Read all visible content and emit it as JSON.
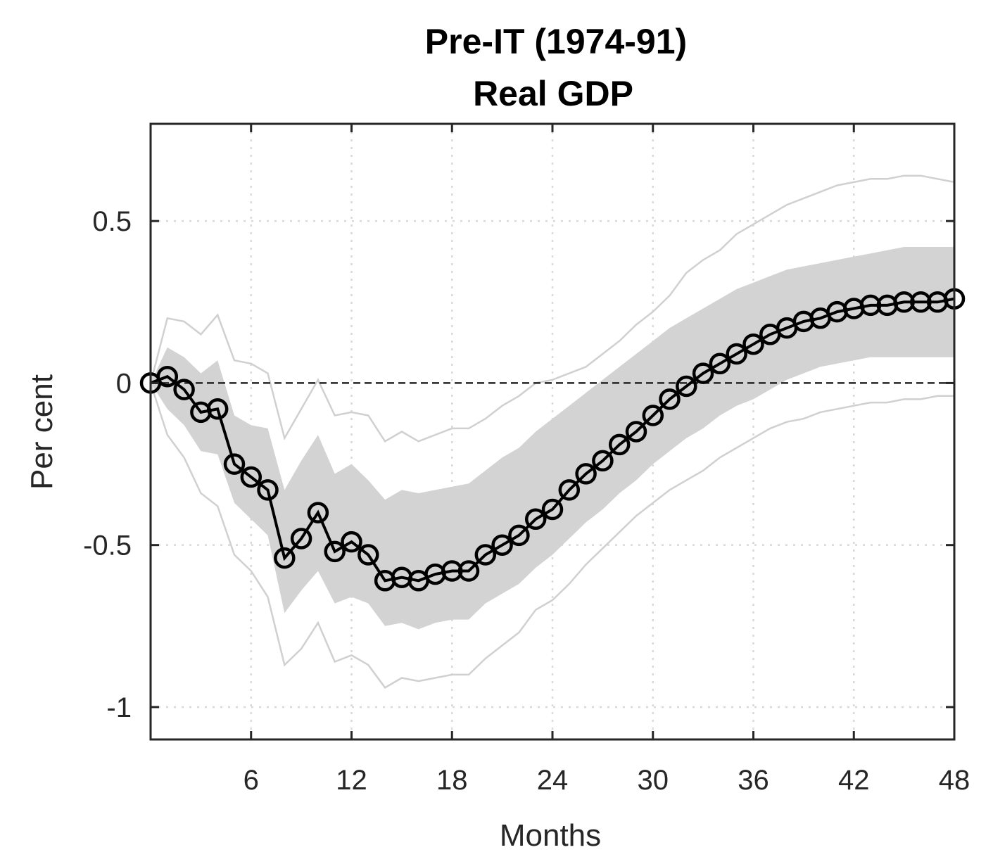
{
  "chart_data": {
    "type": "line",
    "title": "Pre-IT (1974-91)",
    "subtitle": "Real GDP",
    "xlabel": "Months",
    "ylabel": "Per cent",
    "xlim": [
      0,
      48
    ],
    "ylim": [
      -1.1,
      0.8
    ],
    "x_ticks": [
      6,
      12,
      18,
      24,
      30,
      36,
      42,
      48
    ],
    "x_tick_labels": [
      "6",
      "12",
      "18",
      "24",
      "30",
      "36",
      "42",
      "48"
    ],
    "y_ticks": [
      -1,
      -0.5,
      0,
      0.5
    ],
    "y_tick_labels": [
      "-1",
      "-0.5",
      "0",
      "0.5"
    ],
    "grid": true,
    "zero_line": true,
    "colors": {
      "median": "#000000",
      "band": "#d3d3d3",
      "outer": "#d0d0d0",
      "axis": "#262626",
      "grid": "#d9d9d9"
    },
    "x": [
      0,
      1,
      2,
      3,
      4,
      5,
      6,
      7,
      8,
      9,
      10,
      11,
      12,
      13,
      14,
      15,
      16,
      17,
      18,
      19,
      20,
      21,
      22,
      23,
      24,
      25,
      26,
      27,
      28,
      29,
      30,
      31,
      32,
      33,
      34,
      35,
      36,
      37,
      38,
      39,
      40,
      41,
      42,
      43,
      44,
      45,
      46,
      47,
      48
    ],
    "series": [
      {
        "role": "median",
        "values": [
          0,
          0.02,
          -0.02,
          -0.09,
          -0.08,
          -0.25,
          -0.29,
          -0.33,
          -0.54,
          -0.48,
          -0.4,
          -0.52,
          -0.49,
          -0.53,
          -0.61,
          -0.6,
          -0.61,
          -0.59,
          -0.58,
          -0.58,
          -0.53,
          -0.5,
          -0.47,
          -0.42,
          -0.39,
          -0.33,
          -0.28,
          -0.24,
          -0.19,
          -0.15,
          -0.1,
          -0.05,
          -0.01,
          0.03,
          0.06,
          0.09,
          0.12,
          0.15,
          0.17,
          0.19,
          0.2,
          0.22,
          0.23,
          0.24,
          0.24,
          0.25,
          0.25,
          0.25,
          0.26
        ]
      },
      {
        "role": "band-upper",
        "values": [
          0,
          0.11,
          0.08,
          0.03,
          0.07,
          -0.1,
          -0.13,
          -0.14,
          -0.33,
          -0.24,
          -0.16,
          -0.28,
          -0.25,
          -0.3,
          -0.36,
          -0.33,
          -0.34,
          -0.33,
          -0.32,
          -0.31,
          -0.27,
          -0.23,
          -0.2,
          -0.15,
          -0.11,
          -0.07,
          -0.03,
          0.01,
          0.05,
          0.09,
          0.13,
          0.17,
          0.2,
          0.23,
          0.26,
          0.29,
          0.31,
          0.33,
          0.35,
          0.36,
          0.37,
          0.38,
          0.39,
          0.4,
          0.41,
          0.42,
          0.42,
          0.42,
          0.42
        ]
      },
      {
        "role": "band-lower",
        "values": [
          0,
          -0.08,
          -0.13,
          -0.21,
          -0.22,
          -0.37,
          -0.42,
          -0.47,
          -0.71,
          -0.64,
          -0.58,
          -0.68,
          -0.66,
          -0.68,
          -0.75,
          -0.74,
          -0.76,
          -0.74,
          -0.73,
          -0.73,
          -0.68,
          -0.65,
          -0.62,
          -0.57,
          -0.53,
          -0.48,
          -0.43,
          -0.39,
          -0.34,
          -0.3,
          -0.25,
          -0.21,
          -0.17,
          -0.14,
          -0.1,
          -0.07,
          -0.05,
          -0.02,
          0.01,
          0.03,
          0.05,
          0.06,
          0.07,
          0.08,
          0.08,
          0.08,
          0.08,
          0.08,
          0.08
        ]
      },
      {
        "role": "outer-upper",
        "values": [
          0,
          0.2,
          0.19,
          0.15,
          0.21,
          0.07,
          0.06,
          0.03,
          -0.17,
          -0.08,
          0.01,
          -0.1,
          -0.09,
          -0.1,
          -0.18,
          -0.15,
          -0.18,
          -0.16,
          -0.14,
          -0.14,
          -0.11,
          -0.07,
          -0.04,
          0.0,
          0.01,
          0.03,
          0.05,
          0.09,
          0.13,
          0.18,
          0.22,
          0.27,
          0.34,
          0.38,
          0.41,
          0.46,
          0.49,
          0.52,
          0.55,
          0.57,
          0.59,
          0.61,
          0.62,
          0.63,
          0.63,
          0.64,
          0.64,
          0.63,
          0.62
        ]
      },
      {
        "role": "outer-lower",
        "values": [
          0,
          -0.16,
          -0.23,
          -0.34,
          -0.38,
          -0.53,
          -0.58,
          -0.66,
          -0.87,
          -0.82,
          -0.74,
          -0.86,
          -0.84,
          -0.87,
          -0.94,
          -0.91,
          -0.92,
          -0.91,
          -0.9,
          -0.9,
          -0.85,
          -0.81,
          -0.77,
          -0.7,
          -0.67,
          -0.62,
          -0.56,
          -0.51,
          -0.46,
          -0.41,
          -0.37,
          -0.33,
          -0.3,
          -0.27,
          -0.23,
          -0.2,
          -0.17,
          -0.14,
          -0.12,
          -0.11,
          -0.09,
          -0.08,
          -0.07,
          -0.06,
          -0.06,
          -0.05,
          -0.05,
          -0.04,
          -0.04
        ]
      }
    ]
  }
}
